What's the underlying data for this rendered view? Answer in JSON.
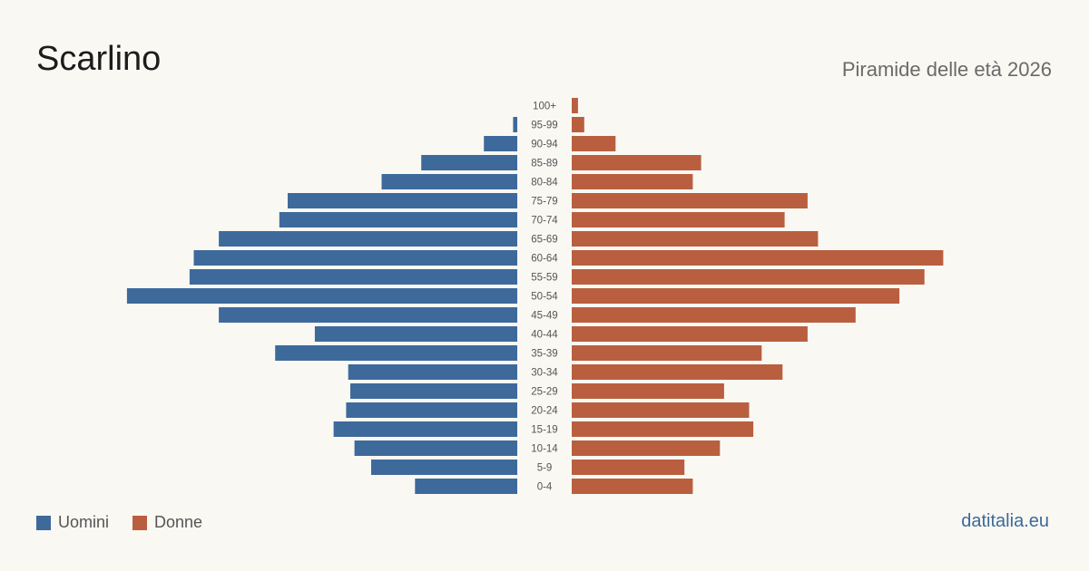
{
  "header": {
    "title": "Scarlino",
    "subtitle": "Piramide delle età 2026"
  },
  "legend": {
    "men_label": "Uomini",
    "women_label": "Donne"
  },
  "source": "datitalia.eu",
  "colors": {
    "men": "#3d6a9b",
    "women": "#b95f3f",
    "background": "#faf8f3"
  },
  "chart_data": {
    "type": "bar",
    "orientation": "horizontal-population-pyramid",
    "categories": [
      "100+",
      "95-99",
      "90-94",
      "85-89",
      "80-84",
      "75-79",
      "70-74",
      "65-69",
      "60-64",
      "55-59",
      "50-54",
      "45-49",
      "40-44",
      "35-39",
      "30-34",
      "25-29",
      "20-24",
      "15-19",
      "10-14",
      "5-9",
      "0-4"
    ],
    "series": [
      {
        "name": "Uomini",
        "values": [
          0,
          2,
          16,
          46,
          65,
          110,
          114,
          143,
          155,
          157,
          187,
          143,
          97,
          116,
          81,
          80,
          82,
          88,
          78,
          70,
          49
        ]
      },
      {
        "name": "Donne",
        "values": [
          3,
          6,
          21,
          62,
          58,
          113,
          102,
          118,
          178,
          169,
          157,
          136,
          113,
          91,
          101,
          73,
          85,
          87,
          71,
          54,
          58
        ]
      }
    ],
    "legend_position": "bottom-left",
    "grid": false
  }
}
